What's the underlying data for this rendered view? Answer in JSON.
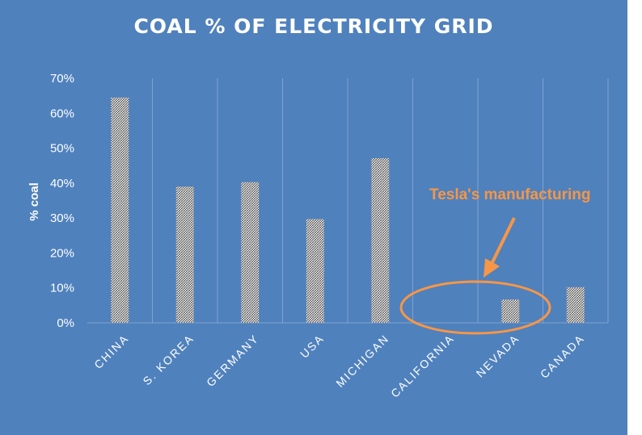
{
  "chart_data": {
    "type": "bar",
    "title": "COAL % OF ELECTRICITY  GRID",
    "ylabel": "% coal",
    "xlabel": "",
    "categories": [
      "CHINA",
      "S. KOREA",
      "GERMANY",
      "USA",
      "MICHIGAN",
      "CALIFORNIA",
      "NEVADA",
      "CANADA"
    ],
    "values": [
      64.5,
      39,
      40.3,
      29.7,
      47.1,
      0,
      6.7,
      10.2
    ],
    "ylim": [
      0,
      70
    ],
    "yticks": [
      "0%",
      "10%",
      "20%",
      "30%",
      "40%",
      "50%",
      "60%",
      "70%"
    ],
    "grid": "vertical category lines",
    "legend": "none",
    "annotation": {
      "text": "Tesla's manufacturing",
      "target": "CALIFORNIA / NEVADA"
    }
  },
  "colors": {
    "background": "#4f81bd",
    "bar_pattern": "#ffffff",
    "annotation": "#f79646",
    "grid": "#7fa3d1"
  }
}
